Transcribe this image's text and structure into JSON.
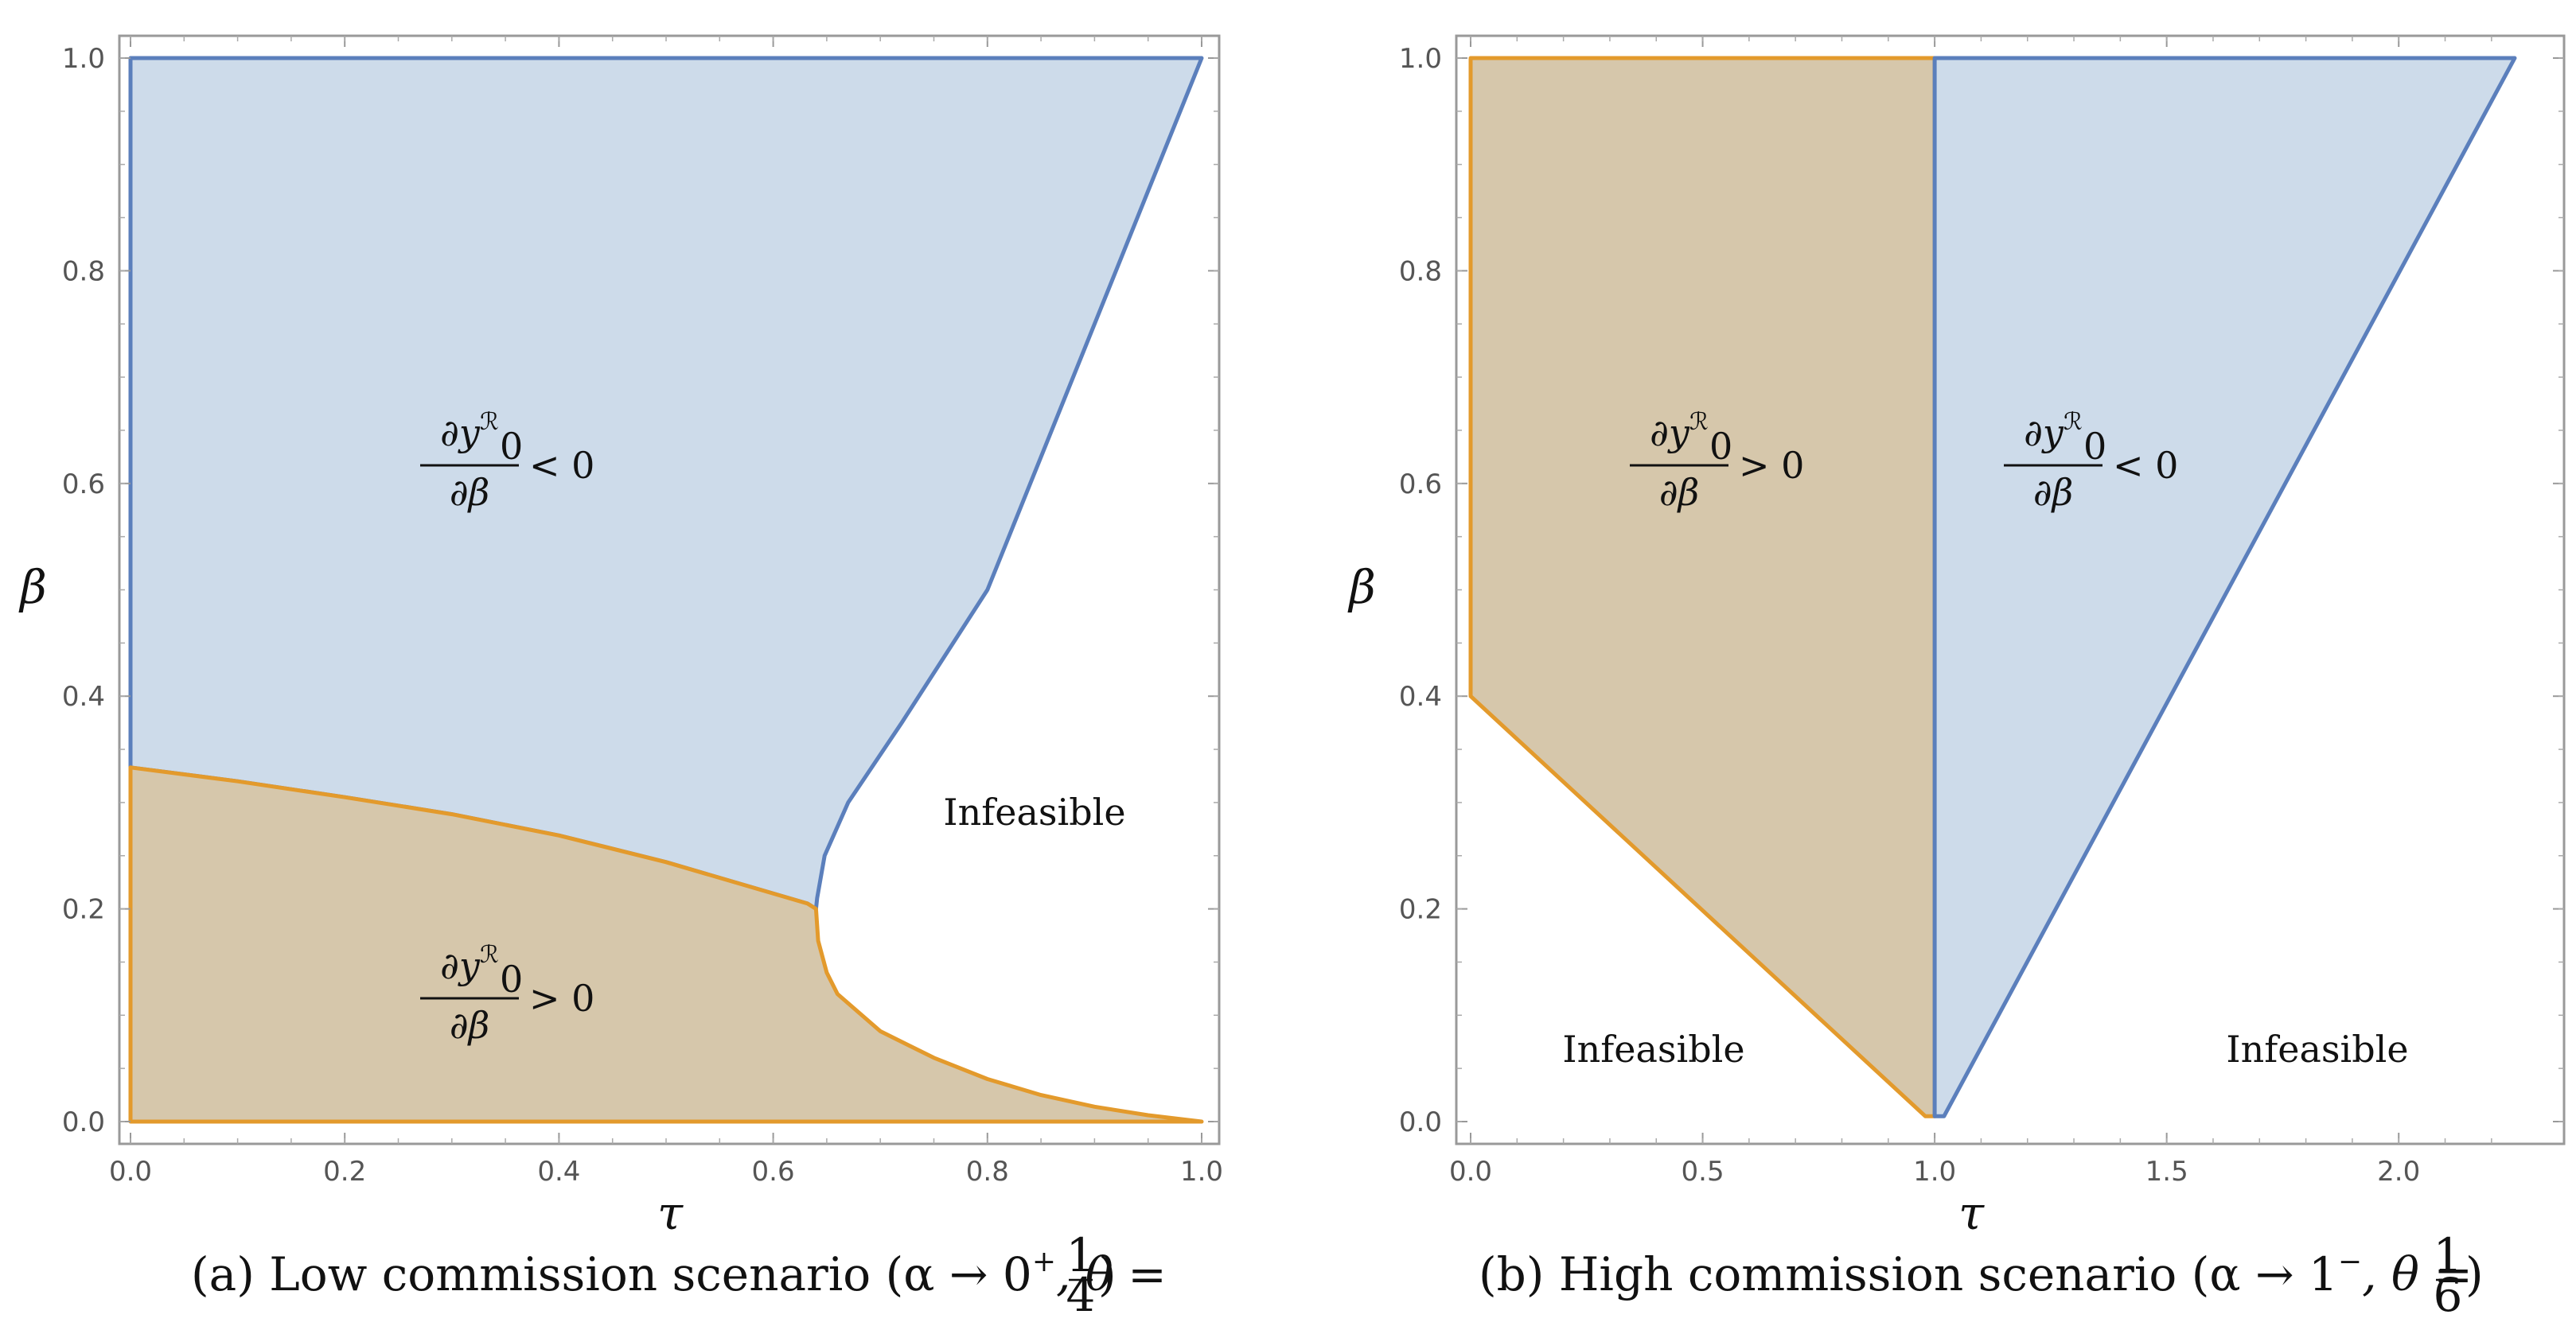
{
  "chart_data": [
    {
      "type": "area",
      "panel": "a",
      "caption": "(a) Low commission scenario (α → 0⁺, θ = 1/4)",
      "xlabel": "τ",
      "ylabel": "β",
      "xlim": [
        0,
        1
      ],
      "ylim": [
        0,
        1
      ],
      "x_ticks": [
        "0.0",
        "0.2",
        "0.4",
        "0.6",
        "0.8",
        "1.0"
      ],
      "y_ticks": [
        "0.0",
        "0.2",
        "0.4",
        "0.6",
        "0.8",
        "1.0"
      ],
      "regions": [
        {
          "name": "dy0R/dβ < 0",
          "label": "∂y₀ᴿ/∂β < 0",
          "color": "#cddbea",
          "stroke": "#5b7fbc",
          "points": [
            [
              0,
              1
            ],
            [
              1,
              1
            ],
            [
              0.95,
              0.875
            ],
            [
              0.9,
              0.75
            ],
            [
              0.85,
              0.625
            ],
            [
              0.8,
              0.5
            ],
            [
              0.72,
              0.375
            ],
            [
              0.67,
              0.3
            ],
            [
              0.648,
              0.25
            ],
            [
              0.641,
              0.21
            ],
            [
              0.64,
              0.2
            ],
            [
              0.632,
              0.205
            ],
            [
              0.5,
              0.244
            ],
            [
              0.4,
              0.269
            ],
            [
              0.3,
              0.289
            ],
            [
              0.2,
              0.305
            ],
            [
              0.1,
              0.32
            ],
            [
              0,
              0.333
            ]
          ]
        },
        {
          "name": "dy0R/dβ > 0",
          "label": "∂y₀ᴿ/∂β > 0",
          "color": "#d6c7ab",
          "stroke": "#e39a2c",
          "points": [
            [
              0,
              0.333
            ],
            [
              0.1,
              0.32
            ],
            [
              0.2,
              0.305
            ],
            [
              0.3,
              0.289
            ],
            [
              0.4,
              0.269
            ],
            [
              0.5,
              0.244
            ],
            [
              0.632,
              0.205
            ],
            [
              0.64,
              0.2
            ],
            [
              0.642,
              0.17
            ],
            [
              0.65,
              0.14
            ],
            [
              0.66,
              0.12
            ],
            [
              0.7,
              0.085
            ],
            [
              0.75,
              0.06
            ],
            [
              0.8,
              0.04
            ],
            [
              0.85,
              0.025
            ],
            [
              0.9,
              0.014
            ],
            [
              0.95,
              0.006
            ],
            [
              1,
              0
            ],
            [
              0,
              0
            ]
          ]
        }
      ],
      "labels": {
        "lower": "∂y₀ᴿ/∂β > 0",
        "upper": "∂y₀ᴿ/∂β < 0",
        "infeasible": "Infeasible"
      }
    },
    {
      "type": "area",
      "panel": "b",
      "caption": "(b) High commission scenario (α → 1⁻, θ = 1/6)",
      "xlabel": "τ",
      "ylabel": "β",
      "xlim": [
        0,
        2.25
      ],
      "ylim": [
        0,
        1
      ],
      "x_ticks": [
        "0.0",
        "0.5",
        "1.0",
        "1.5",
        "2.0"
      ],
      "y_ticks": [
        "0.0",
        "0.2",
        "0.4",
        "0.6",
        "0.8",
        "1.0"
      ],
      "regions": [
        {
          "name": "dy0R/dβ > 0",
          "label": "∂y₀ᴿ/∂β > 0",
          "color": "#d6c7ab",
          "stroke": "#e39a2c",
          "points": [
            [
              0,
              1
            ],
            [
              1,
              1
            ],
            [
              1,
              0.005
            ],
            [
              0.98,
              0.005
            ],
            [
              0,
              0.4
            ]
          ]
        },
        {
          "name": "dy0R/dβ < 0",
          "label": "∂y₀ᴿ/∂β < 0",
          "color": "#cddbea",
          "stroke": "#5b7fbc",
          "points": [
            [
              1,
              1
            ],
            [
              2.25,
              1
            ],
            [
              1.02,
              0.005
            ],
            [
              1,
              0.005
            ]
          ]
        }
      ],
      "labels": {
        "left_region": "∂y₀ᴿ/∂β > 0",
        "right_region": "∂y₀ᴿ/∂β < 0",
        "infeasible_left": "Infeasible",
        "infeasible_right": "Infeasible"
      }
    }
  ],
  "text": {
    "a": {
      "caption_prefix": "(a) Low commission scenario (",
      "caption_alpha": "α → 0",
      "caption_sup": "+",
      "caption_theta": ", θ = ",
      "caption_num": "1",
      "caption_den": "4",
      "caption_close": ")",
      "xlabel": "τ",
      "ylabel": "β",
      "upper_label": {
        "num": "∂y",
        "sub": "0",
        "sup": "ℛ",
        "den": "∂β",
        "rel": "< 0"
      },
      "lower_label": {
        "num": "∂y",
        "sub": "0",
        "sup": "ℛ",
        "den": "∂β",
        "rel": "> 0"
      },
      "infeasible": "Infeasible"
    },
    "b": {
      "caption_prefix": "(b) High commission scenario (",
      "caption_alpha": "α → 1",
      "caption_sup": "−",
      "caption_theta": ", θ = ",
      "caption_num": "1",
      "caption_den": "6",
      "caption_close": ")",
      "xlabel": "τ",
      "ylabel": "β",
      "left_label": {
        "num": "∂y",
        "sub": "0",
        "sup": "ℛ",
        "den": "∂β",
        "rel": "> 0"
      },
      "right_label": {
        "num": "∂y",
        "sub": "0",
        "sup": "ℛ",
        "den": "∂β",
        "rel": "< 0"
      },
      "infeasible_left": "Infeasible",
      "infeasible_right": "Infeasible"
    }
  },
  "colors": {
    "blue_fill": "#cddbea",
    "blue_line": "#5b7fbc",
    "tan_fill": "#d6c7ab",
    "orange_line": "#e39a2c",
    "frame": "#999999"
  }
}
